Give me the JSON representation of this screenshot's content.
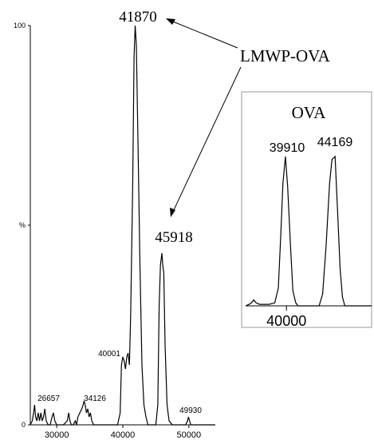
{
  "chart_data": [
    {
      "type": "line",
      "title": "",
      "xlabel": "",
      "ylabel": "%",
      "xlim": [
        26000,
        54000
      ],
      "ylim": [
        0,
        100
      ],
      "x_ticks": [
        "30000",
        "40000",
        "50000"
      ],
      "y_ticks": [
        "0",
        "100"
      ],
      "series": [
        {
          "values": [
            [
              26000,
              0
            ],
            [
              26300,
              1
            ],
            [
              26500,
              3
            ],
            [
              26657,
              5
            ],
            [
              26800,
              2
            ],
            [
              27000,
              1
            ],
            [
              27200,
              3
            ],
            [
              27400,
              1
            ],
            [
              27600,
              3
            ],
            [
              27800,
              1
            ],
            [
              28000,
              2
            ],
            [
              28200,
              4
            ],
            [
              28400,
              1
            ],
            [
              28700,
              0
            ],
            [
              29000,
              0
            ],
            [
              29300,
              2
            ],
            [
              29500,
              3
            ],
            [
              29700,
              1
            ],
            [
              30000,
              0
            ],
            [
              30500,
              0
            ],
            [
              31000,
              0
            ],
            [
              31600,
              1
            ],
            [
              31800,
              3
            ],
            [
              32000,
              1
            ],
            [
              32200,
              0
            ],
            [
              32500,
              0
            ],
            [
              32800,
              1
            ],
            [
              33000,
              0
            ],
            [
              33200,
              2
            ],
            [
              33500,
              3
            ],
            [
              33800,
              4
            ],
            [
              34000,
              5
            ],
            [
              34126,
              6
            ],
            [
              34300,
              5
            ],
            [
              34500,
              3
            ],
            [
              34700,
              4
            ],
            [
              34900,
              2
            ],
            [
              35100,
              3
            ],
            [
              35300,
              1
            ],
            [
              35600,
              0
            ],
            [
              37000,
              0
            ],
            [
              38500,
              0
            ],
            [
              39200,
              0
            ],
            [
              39600,
              3
            ],
            [
              39800,
              15
            ],
            [
              40001,
              17
            ],
            [
              40200,
              16
            ],
            [
              40400,
              14
            ],
            [
              40600,
              17
            ],
            [
              40800,
              18
            ],
            [
              41000,
              15
            ],
            [
              41200,
              28
            ],
            [
              41500,
              60
            ],
            [
              41700,
              92
            ],
            [
              41870,
              100
            ],
            [
              42050,
              95
            ],
            [
              42300,
              70
            ],
            [
              42600,
              40
            ],
            [
              42900,
              15
            ],
            [
              43200,
              5
            ],
            [
              43500,
              2
            ],
            [
              43800,
              0
            ],
            [
              44500,
              0
            ],
            [
              45000,
              0
            ],
            [
              45300,
              5
            ],
            [
              45500,
              30
            ],
            [
              45700,
              40
            ],
            [
              45918,
              43
            ],
            [
              46050,
              40
            ],
            [
              46200,
              38
            ],
            [
              46400,
              20
            ],
            [
              46700,
              5
            ],
            [
              47000,
              1
            ],
            [
              47500,
              0
            ],
            [
              49500,
              0
            ],
            [
              49800,
              1
            ],
            [
              49930,
              2
            ],
            [
              50100,
              1
            ],
            [
              50300,
              0
            ],
            [
              54000,
              0
            ]
          ]
        }
      ],
      "annotations": [
        {
          "x": 41870,
          "label": "41870"
        },
        {
          "x": 45918,
          "label": "45918"
        },
        {
          "x": 40001,
          "label": "40001"
        },
        {
          "x": 26657,
          "label": "26657"
        },
        {
          "x": 34126,
          "label": "34126"
        },
        {
          "x": 49930,
          "label": "49930"
        }
      ],
      "annotation_label": "LMWP-OVA"
    },
    {
      "type": "line",
      "title": "OVA",
      "xlim": [
        36500,
        47300
      ],
      "ylim": [
        0,
        100
      ],
      "x_ticks": [
        "40000"
      ],
      "series": [
        {
          "values": [
            [
              36500,
              0
            ],
            [
              36800,
              1
            ],
            [
              37000,
              2
            ],
            [
              37200,
              4
            ],
            [
              37400,
              2
            ],
            [
              37700,
              1
            ],
            [
              38000,
              1
            ],
            [
              38500,
              1
            ],
            [
              39000,
              2
            ],
            [
              39300,
              12
            ],
            [
              39500,
              45
            ],
            [
              39700,
              82
            ],
            [
              39910,
              100
            ],
            [
              40100,
              80
            ],
            [
              40350,
              40
            ],
            [
              40550,
              10
            ],
            [
              40800,
              2
            ],
            [
              41000,
              0
            ],
            [
              42800,
              0
            ],
            [
              43100,
              8
            ],
            [
              43400,
              40
            ],
            [
              43700,
              82
            ],
            [
              43900,
              98
            ],
            [
              44169,
              100
            ],
            [
              44400,
              60
            ],
            [
              44600,
              25
            ],
            [
              44800,
              6
            ],
            [
              45000,
              0
            ],
            [
              47300,
              0
            ]
          ]
        }
      ],
      "annotations": [
        {
          "x": 39910,
          "label": "39910"
        },
        {
          "x": 44169,
          "label": "44169"
        }
      ]
    }
  ]
}
